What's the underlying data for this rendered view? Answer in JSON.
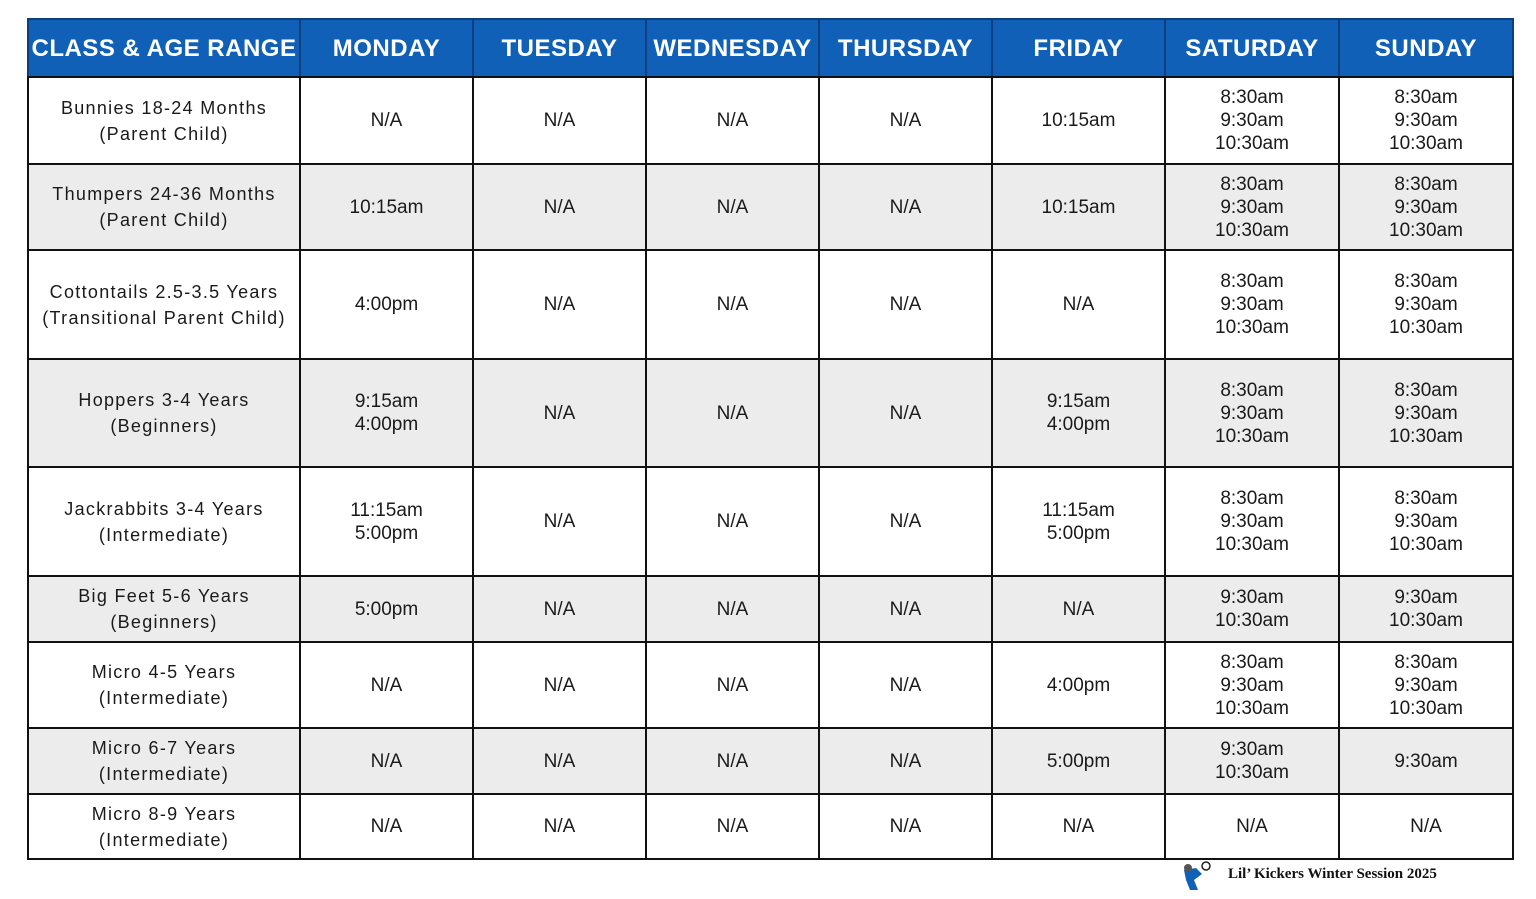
{
  "table": {
    "header": [
      "CLASS & AGE RANGE",
      "MONDAY",
      "TUESDAY",
      "WEDNESDAY",
      "THURSDAY",
      "FRIDAY",
      "SATURDAY",
      "SUNDAY"
    ],
    "rows": [
      [
        [
          "Bunnies 18-24 Months",
          "(Parent Child)"
        ],
        [
          "N/A"
        ],
        [
          "N/A"
        ],
        [
          "N/A"
        ],
        [
          "N/A"
        ],
        [
          "10:15am"
        ],
        [
          "8:30am",
          "9:30am",
          "10:30am"
        ],
        [
          "8:30am",
          "9:30am",
          "10:30am"
        ]
      ],
      [
        [
          "Thumpers 24-36 Months",
          "(Parent Child)"
        ],
        [
          "10:15am"
        ],
        [
          "N/A"
        ],
        [
          "N/A"
        ],
        [
          "N/A"
        ],
        [
          "10:15am"
        ],
        [
          "8:30am",
          "9:30am",
          "10:30am"
        ],
        [
          "8:30am",
          "9:30am",
          "10:30am"
        ]
      ],
      [
        [
          "Cottontails 2.5-3.5 Years",
          "(Transitional Parent Child)"
        ],
        [
          "4:00pm"
        ],
        [
          "N/A"
        ],
        [
          "N/A"
        ],
        [
          "N/A"
        ],
        [
          "N/A"
        ],
        [
          "8:30am",
          "9:30am",
          "10:30am"
        ],
        [
          "8:30am",
          "9:30am",
          "10:30am"
        ]
      ],
      [
        [
          "Hoppers 3-4 Years",
          "(Beginners)"
        ],
        [
          "9:15am",
          "4:00pm"
        ],
        [
          "N/A"
        ],
        [
          "N/A"
        ],
        [
          "N/A"
        ],
        [
          "9:15am",
          "4:00pm"
        ],
        [
          "8:30am",
          "9:30am",
          "10:30am"
        ],
        [
          "8:30am",
          "9:30am",
          "10:30am"
        ]
      ],
      [
        [
          "Jackrabbits 3-4 Years",
          "(Intermediate)"
        ],
        [
          "11:15am",
          "5:00pm"
        ],
        [
          "N/A"
        ],
        [
          "N/A"
        ],
        [
          "N/A"
        ],
        [
          "11:15am",
          "5:00pm"
        ],
        [
          "8:30am",
          "9:30am",
          "10:30am"
        ],
        [
          "8:30am",
          "9:30am",
          "10:30am"
        ]
      ],
      [
        [
          "Big Feet 5-6 Years",
          "(Beginners)"
        ],
        [
          "5:00pm"
        ],
        [
          "N/A"
        ],
        [
          "N/A"
        ],
        [
          "N/A"
        ],
        [
          "N/A"
        ],
        [
          "9:30am",
          "10:30am"
        ],
        [
          "9:30am",
          "10:30am"
        ]
      ],
      [
        [
          "Micro 4-5 Years",
          "(Intermediate)"
        ],
        [
          "N/A"
        ],
        [
          "N/A"
        ],
        [
          "N/A"
        ],
        [
          "N/A"
        ],
        [
          "4:00pm"
        ],
        [
          "8:30am",
          "9:30am",
          "10:30am"
        ],
        [
          "8:30am",
          "9:30am",
          "10:30am"
        ]
      ],
      [
        [
          "Micro 6-7 Years",
          "(Intermediate)"
        ],
        [
          "N/A"
        ],
        [
          "N/A"
        ],
        [
          "N/A"
        ],
        [
          "N/A"
        ],
        [
          "5:00pm"
        ],
        [
          "9:30am",
          "10:30am"
        ],
        [
          "9:30am"
        ]
      ],
      [
        [
          "Micro 8-9 Years",
          "(Intermediate)"
        ],
        [
          "N/A"
        ],
        [
          "N/A"
        ],
        [
          "N/A"
        ],
        [
          "N/A"
        ],
        [
          "N/A"
        ],
        [
          "N/A"
        ],
        [
          "N/A"
        ]
      ]
    ]
  },
  "footer": {
    "text": "Lil’ Kickers Winter Session 2025"
  }
}
